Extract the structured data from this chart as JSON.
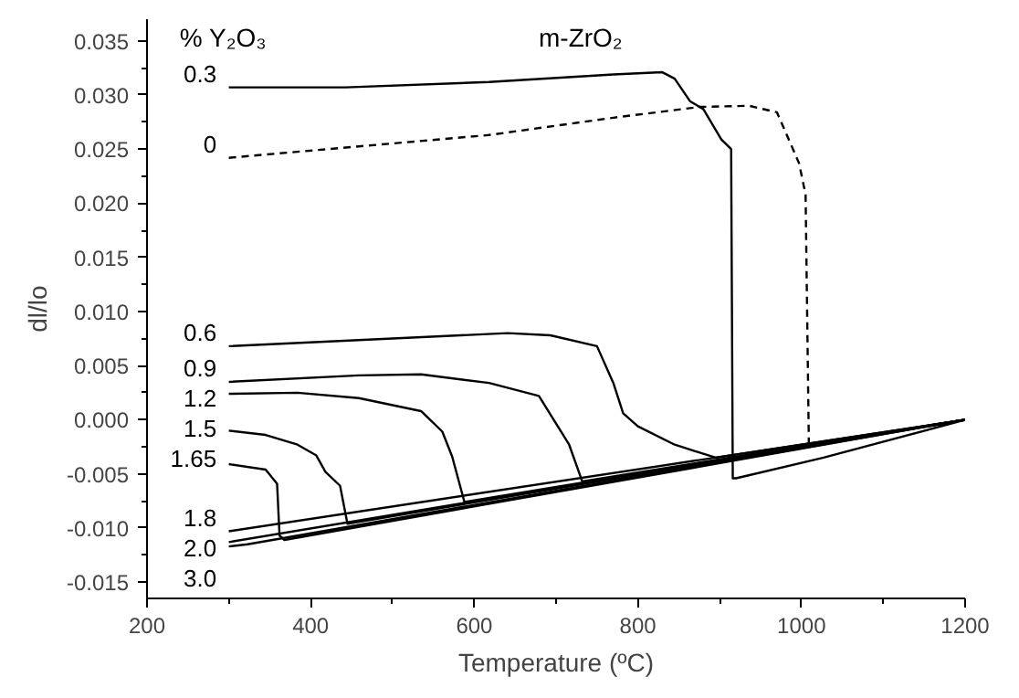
{
  "chart_data": {
    "type": "line",
    "title": "m-ZrO₂",
    "xlabel": "Temperature (ºC)",
    "ylabel": "dl/lo",
    "legend_title": "% Y₂O₃",
    "xlim": [
      200,
      1200
    ],
    "ylim": [
      -0.0165,
      0.037
    ],
    "xticks": [
      200,
      400,
      600,
      800,
      1000,
      1200
    ],
    "yticks": [
      {
        "value": -0.015,
        "label": "-0.015"
      },
      {
        "value": -0.01,
        "label": "-0.010"
      },
      {
        "value": -0.005,
        "label": "-0.005"
      },
      {
        "value": 0,
        "label": "0.000"
      },
      {
        "value": 0.005,
        "label": "0.005"
      },
      {
        "value": 0.01,
        "label": "0.010"
      },
      {
        "value": 0.015,
        "label": "0.015"
      },
      {
        "value": 0.02,
        "label": "0.020"
      },
      {
        "value": 0.025,
        "label": "0.025"
      },
      {
        "value": 0.03,
        "label": "0.030"
      },
      {
        "value": 0.035,
        "label": "0.035"
      }
    ],
    "grid": false,
    "marker": "none",
    "series": [
      {
        "name": "0.3",
        "color": "#000000",
        "line_style": "solid",
        "x": [
          300,
          443,
          618,
          770,
          830,
          845,
          864,
          880,
          902,
          914,
          916,
          920,
          1027,
          1200
        ],
        "values": [
          0.0307,
          0.0307,
          0.0312,
          0.0319,
          0.0321,
          0.0315,
          0.0294,
          0.0287,
          0.0259,
          0.025,
          -0.0054,
          -0.0054,
          -0.0035,
          0.0
        ]
      },
      {
        "name": "0",
        "color": "#000000",
        "line_style": "dashed",
        "x": [
          300,
          618,
          770,
          876,
          936,
          970,
          997,
          1005,
          1009,
          1200
        ],
        "values": [
          0.0242,
          0.0263,
          0.0279,
          0.0289,
          0.029,
          0.0284,
          0.0237,
          0.0208,
          -0.0023,
          0.0
        ]
      },
      {
        "name": "0.6",
        "color": "#000000",
        "line_style": "solid",
        "x": [
          300,
          641,
          693,
          750,
          770,
          782,
          800,
          845,
          895,
          1200
        ],
        "values": [
          0.0068,
          0.008,
          0.0078,
          0.0068,
          0.0034,
          0.0006,
          -0.0006,
          -0.0023,
          -0.0035,
          0.0
        ]
      },
      {
        "name": "0.9",
        "color": "#000000",
        "line_style": "solid",
        "x": [
          300,
          459,
          535,
          618,
          679,
          716,
          732,
          1200
        ],
        "values": [
          0.0035,
          0.0041,
          0.0042,
          0.0034,
          0.0022,
          -0.0023,
          -0.0057,
          0.0
        ]
      },
      {
        "name": "1.2",
        "color": "#000000",
        "line_style": "solid",
        "x": [
          300,
          384,
          459,
          535,
          561,
          573,
          588,
          1200
        ],
        "values": [
          0.0024,
          0.0025,
          0.002,
          0.0008,
          -0.0011,
          -0.0034,
          -0.0076,
          0.0
        ]
      },
      {
        "name": "1.5",
        "color": "#000000",
        "line_style": "solid",
        "x": [
          300,
          345,
          384,
          407,
          418,
          436,
          445,
          1200
        ],
        "values": [
          -0.001,
          -0.0014,
          -0.0023,
          -0.0033,
          -0.0048,
          -0.0061,
          -0.0096,
          0.0
        ]
      },
      {
        "name": "1.65",
        "color": "#000000",
        "line_style": "solid",
        "x": [
          300,
          345,
          359,
          362,
          368,
          1200
        ],
        "values": [
          -0.0041,
          -0.0046,
          -0.0059,
          -0.0107,
          -0.0111,
          0.0
        ]
      },
      {
        "name": "1.8",
        "color": "#000000",
        "line_style": "solid",
        "x": [
          300,
          1200
        ],
        "values": [
          -0.0103,
          0.0
        ]
      },
      {
        "name": "2.0",
        "color": "#000000",
        "line_style": "solid",
        "x": [
          300,
          1200
        ],
        "values": [
          -0.0113,
          0.0
        ]
      },
      {
        "name": "3.0",
        "color": "#000000",
        "line_style": "solid",
        "x": [
          300,
          323,
          1200
        ],
        "values": [
          -0.0117,
          -0.0115,
          0.0
        ]
      }
    ]
  }
}
